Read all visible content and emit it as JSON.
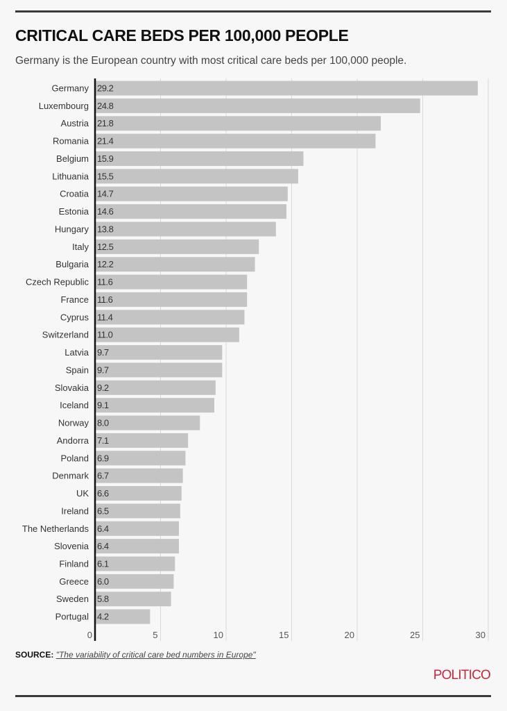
{
  "header": {
    "title": "CRITICAL CARE BEDS PER 100,000 PEOPLE",
    "subtitle": "Germany is the European country with most critical care beds per 100,000 people."
  },
  "footer": {
    "source_label": "SOURCE:",
    "source_text": "\"The variability of critical care bed numbers in Europe\"",
    "logo": "POLITICO"
  },
  "colors": {
    "bar": "#c4c4c4",
    "logo": "#c8283a",
    "grid": "#d8d8d8",
    "axis": "#111111"
  },
  "chart_data": {
    "type": "bar",
    "orientation": "horizontal",
    "categories": [
      "Germany",
      "Luxembourg",
      "Austria",
      "Romania",
      "Belgium",
      "Lithuania",
      "Croatia",
      "Estonia",
      "Hungary",
      "Italy",
      "Bulgaria",
      "Czech Republic",
      "France",
      "Cyprus",
      "Switzerland",
      "Latvia",
      "Spain",
      "Slovakia",
      "Iceland",
      "Norway",
      "Andorra",
      "Poland",
      "Denmark",
      "UK",
      "Ireland",
      "The Netherlands",
      "Slovenia",
      "Finland",
      "Greece",
      "Sweden",
      "Portugal"
    ],
    "values": [
      29.2,
      24.8,
      21.8,
      21.4,
      15.9,
      15.5,
      14.7,
      14.6,
      13.8,
      12.5,
      12.2,
      11.6,
      11.6,
      11.4,
      11.0,
      9.7,
      9.7,
      9.2,
      9.1,
      8.0,
      7.1,
      6.9,
      6.7,
      6.6,
      6.5,
      6.4,
      6.4,
      6.1,
      6.0,
      5.8,
      4.2
    ],
    "value_labels": [
      "29.2",
      "24.8",
      "21.8",
      "21.4",
      "15.9",
      "15.5",
      "14.7",
      "14.6",
      "13.8",
      "12.5",
      "12.2",
      "11.6",
      "11.6",
      "11.4",
      "11.0",
      "9.7",
      "9.7",
      "9.2",
      "9.1",
      "8.0",
      "7.1",
      "6.9",
      "6.7",
      "6.6",
      "6.5",
      "6.4",
      "6.4",
      "6.1",
      "6.0",
      "5.8",
      "4.2"
    ],
    "xlim": [
      0,
      30
    ],
    "xticks": [
      "0",
      "5",
      "10",
      "15",
      "20",
      "25",
      "30"
    ],
    "grid": true,
    "legend": "none"
  }
}
